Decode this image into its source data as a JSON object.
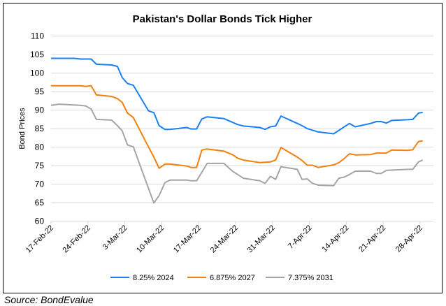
{
  "chart_data": {
    "type": "line",
    "title": "Pakistan's Dollar Bonds Tick Higher",
    "xlabel": "",
    "ylabel": "Bond Prices",
    "ylim": [
      60,
      110
    ],
    "yticks": [
      60,
      65,
      70,
      75,
      80,
      85,
      90,
      95,
      100,
      105,
      110
    ],
    "x_unit": "days since 17-Feb-22",
    "xlim": [
      0,
      70
    ],
    "xticks": [
      0,
      7,
      14,
      21,
      28,
      35,
      42,
      49,
      56,
      63,
      70
    ],
    "xtick_labels": [
      "17-Feb-22",
      "24-Feb-22",
      "3-Mar-22",
      "10-Mar-22",
      "17-Mar-22",
      "24-Mar-22",
      "31-Mar-22",
      "7-Apr-22",
      "14-Apr-22",
      "21-Apr-22",
      "28-Apr-22"
    ],
    "grid": true,
    "legend_position": "bottom",
    "series": [
      {
        "name": "8.25% 2024",
        "color": "#1a7ff5",
        "points": [
          [
            0,
            104
          ],
          [
            4.4,
            104
          ],
          [
            5.6,
            103.8
          ],
          [
            7.6,
            103.8
          ],
          [
            8.6,
            102.4
          ],
          [
            11.5,
            102.2
          ],
          [
            12.6,
            101.8
          ],
          [
            13.5,
            98.8
          ],
          [
            14.5,
            97.2
          ],
          [
            15.6,
            96.7
          ],
          [
            18.5,
            89.8
          ],
          [
            19.5,
            89.3
          ],
          [
            20.5,
            85.8
          ],
          [
            21.6,
            84.8
          ],
          [
            22.6,
            84.8
          ],
          [
            25.7,
            85.3
          ],
          [
            26.6,
            84.9
          ],
          [
            27.6,
            84.9
          ],
          [
            28.6,
            87.6
          ],
          [
            29.6,
            88.2
          ],
          [
            32.8,
            87.7
          ],
          [
            35.4,
            86.1
          ],
          [
            36.5,
            85.7
          ],
          [
            39.6,
            85.3
          ],
          [
            40.6,
            84.8
          ],
          [
            41.6,
            85.5
          ],
          [
            42.6,
            85.7
          ],
          [
            43.6,
            88.4
          ],
          [
            46.7,
            86.4
          ],
          [
            47.6,
            85.8
          ],
          [
            48.6,
            85.0
          ],
          [
            50.7,
            84.1
          ],
          [
            53.6,
            83.6
          ],
          [
            56.6,
            86.4
          ],
          [
            57.7,
            85.5
          ],
          [
            60.6,
            86.4
          ],
          [
            61.7,
            86.9
          ],
          [
            62.6,
            86.9
          ],
          [
            63.6,
            86.5
          ],
          [
            64.6,
            87.2
          ],
          [
            67.7,
            87.4
          ],
          [
            68.6,
            87.5
          ],
          [
            69.7,
            89.2
          ],
          [
            70.5,
            89.4
          ]
        ]
      },
      {
        "name": "6.875% 2027",
        "color": "#f57f0a",
        "points": [
          [
            0,
            96.6
          ],
          [
            5.6,
            96.6
          ],
          [
            6.6,
            96.4
          ],
          [
            7.6,
            96.6
          ],
          [
            8.6,
            94.1
          ],
          [
            11.5,
            93.7
          ],
          [
            12.6,
            93.1
          ],
          [
            13.5,
            92.1
          ],
          [
            14.5,
            89.2
          ],
          [
            15.6,
            88.0
          ],
          [
            18.5,
            80.0
          ],
          [
            19.5,
            77.3
          ],
          [
            20.5,
            74.3
          ],
          [
            21.6,
            75.4
          ],
          [
            22.6,
            75.4
          ],
          [
            25.7,
            74.9
          ],
          [
            26.6,
            74.5
          ],
          [
            27.6,
            74.5
          ],
          [
            28.6,
            79.2
          ],
          [
            29.6,
            79.5
          ],
          [
            32.8,
            78.9
          ],
          [
            34.5,
            77.9
          ],
          [
            35.4,
            77.0
          ],
          [
            36.5,
            76.5
          ],
          [
            39.6,
            75.8
          ],
          [
            40.6,
            75.9
          ],
          [
            41.6,
            76.0
          ],
          [
            42.6,
            76.5
          ],
          [
            43.6,
            79.9
          ],
          [
            46.7,
            77.3
          ],
          [
            47.6,
            76.4
          ],
          [
            48.6,
            75.1
          ],
          [
            49.6,
            75.1
          ],
          [
            50.7,
            74.5
          ],
          [
            53.6,
            75.2
          ],
          [
            54.6,
            75.8
          ],
          [
            55.6,
            76.9
          ],
          [
            56.6,
            78.2
          ],
          [
            57.7,
            77.9
          ],
          [
            60.6,
            78.0
          ],
          [
            61.7,
            78.4
          ],
          [
            63.6,
            78.4
          ],
          [
            64.6,
            79.2
          ],
          [
            67.7,
            79.1
          ],
          [
            68.6,
            79.3
          ],
          [
            69.7,
            81.5
          ],
          [
            70.5,
            81.7
          ]
        ]
      },
      {
        "name": "7.375% 2031",
        "color": "#a5a5a5",
        "points": [
          [
            0,
            91.3
          ],
          [
            1.5,
            91.6
          ],
          [
            5.6,
            91.3
          ],
          [
            6.6,
            91.1
          ],
          [
            7.6,
            90.3
          ],
          [
            8.6,
            87.5
          ],
          [
            11.5,
            87.3
          ],
          [
            12.6,
            85.8
          ],
          [
            13.5,
            84.4
          ],
          [
            14.5,
            80.6
          ],
          [
            15.6,
            80.1
          ],
          [
            18.5,
            68.8
          ],
          [
            19.5,
            64.9
          ],
          [
            20.5,
            66.9
          ],
          [
            21.6,
            70.4
          ],
          [
            22.6,
            71.1
          ],
          [
            25.7,
            71.1
          ],
          [
            26.6,
            70.9
          ],
          [
            27.6,
            70.9
          ],
          [
            28.6,
            73.2
          ],
          [
            29.6,
            75.6
          ],
          [
            32.8,
            75.6
          ],
          [
            33.4,
            74.8
          ],
          [
            34.5,
            73.4
          ],
          [
            35.4,
            72.6
          ],
          [
            36.5,
            71.6
          ],
          [
            39.6,
            70.9
          ],
          [
            40.6,
            70.2
          ],
          [
            41.6,
            72.1
          ],
          [
            42.6,
            71.3
          ],
          [
            43.6,
            74.7
          ],
          [
            46.7,
            74.0
          ],
          [
            47.6,
            71.3
          ],
          [
            48.6,
            71.4
          ],
          [
            49.6,
            70.2
          ],
          [
            50.7,
            69.7
          ],
          [
            53.6,
            69.6
          ],
          [
            54.6,
            71.6
          ],
          [
            55.6,
            71.9
          ],
          [
            56.6,
            72.6
          ],
          [
            57.7,
            73.5
          ],
          [
            60.6,
            73.5
          ],
          [
            61.7,
            72.9
          ],
          [
            62.6,
            72.9
          ],
          [
            63.6,
            73.7
          ],
          [
            67.7,
            74.0
          ],
          [
            68.6,
            74.0
          ],
          [
            69.7,
            76.0
          ],
          [
            70.5,
            76.5
          ]
        ]
      }
    ]
  },
  "source": "Source: BondEvalue"
}
